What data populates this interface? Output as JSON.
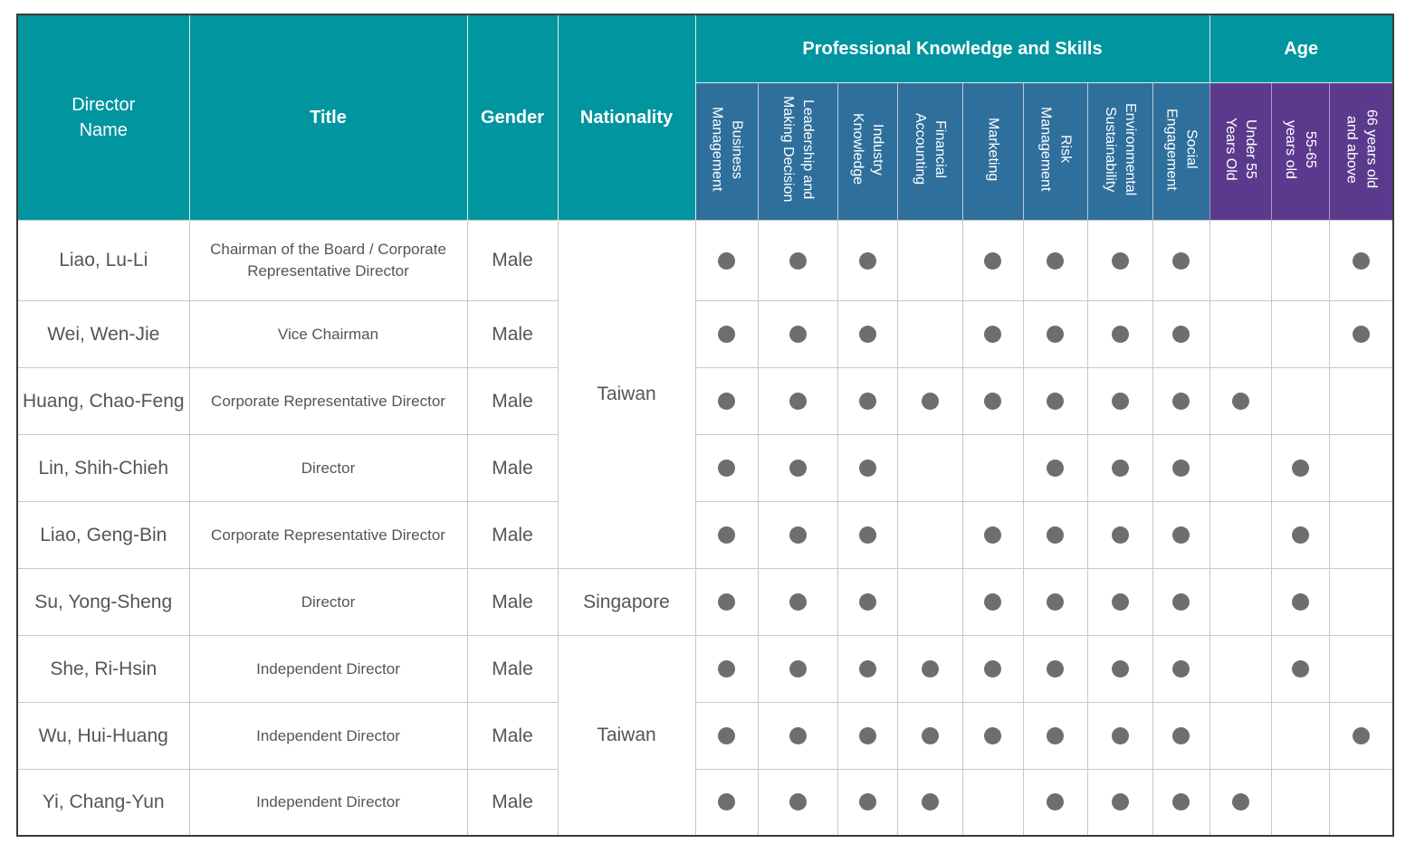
{
  "headers": {
    "director_name": "Director Name",
    "title": "Title",
    "gender": "Gender",
    "nationality": "Nationality",
    "skills_group": "Professional Knowledge and Skills",
    "age_group": "Age",
    "skills": [
      "Business\nManagement",
      "Leadership and\nMaking Decision",
      "Industry\nKnowledge",
      "Financial\nAccounting",
      "Marketing",
      "Risk\nManagement",
      "Environmental\nSustainability",
      "Social\nEngagement"
    ],
    "ages": [
      "Under 55\nYears Old",
      "55-65\nyears old",
      "66 years old\nand above"
    ]
  },
  "directors": [
    {
      "name": "Liao, Lu-Li",
      "title": "Chairman of the Board / Corporate Representative Director",
      "gender": "Male",
      "marks": [
        1,
        1,
        1,
        0,
        1,
        1,
        1,
        1,
        0,
        0,
        1
      ]
    },
    {
      "name": "Wei, Wen-Jie",
      "title": "Vice Chairman",
      "gender": "Male",
      "marks": [
        1,
        1,
        1,
        0,
        1,
        1,
        1,
        1,
        0,
        0,
        1
      ]
    },
    {
      "name": "Huang, Chao-Feng",
      "title": "Corporate Representative Director",
      "gender": "Male",
      "marks": [
        1,
        1,
        1,
        1,
        1,
        1,
        1,
        1,
        1,
        0,
        0
      ]
    },
    {
      "name": "Lin, Shih-Chieh",
      "title": "Director",
      "gender": "Male",
      "marks": [
        1,
        1,
        1,
        0,
        0,
        1,
        1,
        1,
        0,
        1,
        0
      ]
    },
    {
      "name": "Liao, Geng-Bin",
      "title": "Corporate Representative Director",
      "gender": "Male",
      "marks": [
        1,
        1,
        1,
        0,
        1,
        1,
        1,
        1,
        0,
        1,
        0
      ]
    },
    {
      "name": "Su, Yong-Sheng",
      "title": "Director",
      "gender": "Male",
      "marks": [
        1,
        1,
        1,
        0,
        1,
        1,
        1,
        1,
        0,
        1,
        0
      ]
    },
    {
      "name": "She, Ri-Hsin",
      "title": "Independent Director",
      "gender": "Male",
      "marks": [
        1,
        1,
        1,
        1,
        1,
        1,
        1,
        1,
        0,
        1,
        0
      ]
    },
    {
      "name": "Wu, Hui-Huang",
      "title": "Independent Director",
      "gender": "Male",
      "marks": [
        1,
        1,
        1,
        1,
        1,
        1,
        1,
        1,
        0,
        0,
        1
      ]
    },
    {
      "name": "Yi, Chang-Yun",
      "title": "Independent Director",
      "gender": "Male",
      "marks": [
        1,
        1,
        1,
        1,
        0,
        1,
        1,
        1,
        1,
        0,
        0
      ]
    }
  ],
  "nationality_groups": [
    {
      "label": "Taiwan",
      "span": 5
    },
    {
      "label": "Singapore",
      "span": 1
    },
    {
      "label": "Taiwan",
      "span": 3
    }
  ]
}
